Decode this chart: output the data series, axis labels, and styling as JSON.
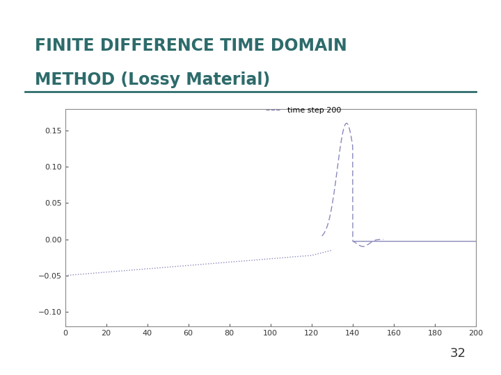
{
  "title_line1": "FINITE DIFFERENCE TIME DOMAIN",
  "title_line2": "METHOD (Lossy Material)",
  "title_color": "#2E6B6B",
  "background_color": "#FFFFFF",
  "slide_number": "32",
  "legend_label": "time step 200",
  "xlim": [
    0,
    200
  ],
  "ylim": [
    -0.12,
    0.18
  ],
  "xticks": [
    0,
    20,
    40,
    60,
    80,
    100,
    120,
    140,
    160,
    180,
    200
  ],
  "yticks": [
    -0.1,
    -0.05,
    0,
    0.05,
    0.1,
    0.15
  ],
  "line_color": "#8888BB",
  "border_color": "#2E6B6B"
}
